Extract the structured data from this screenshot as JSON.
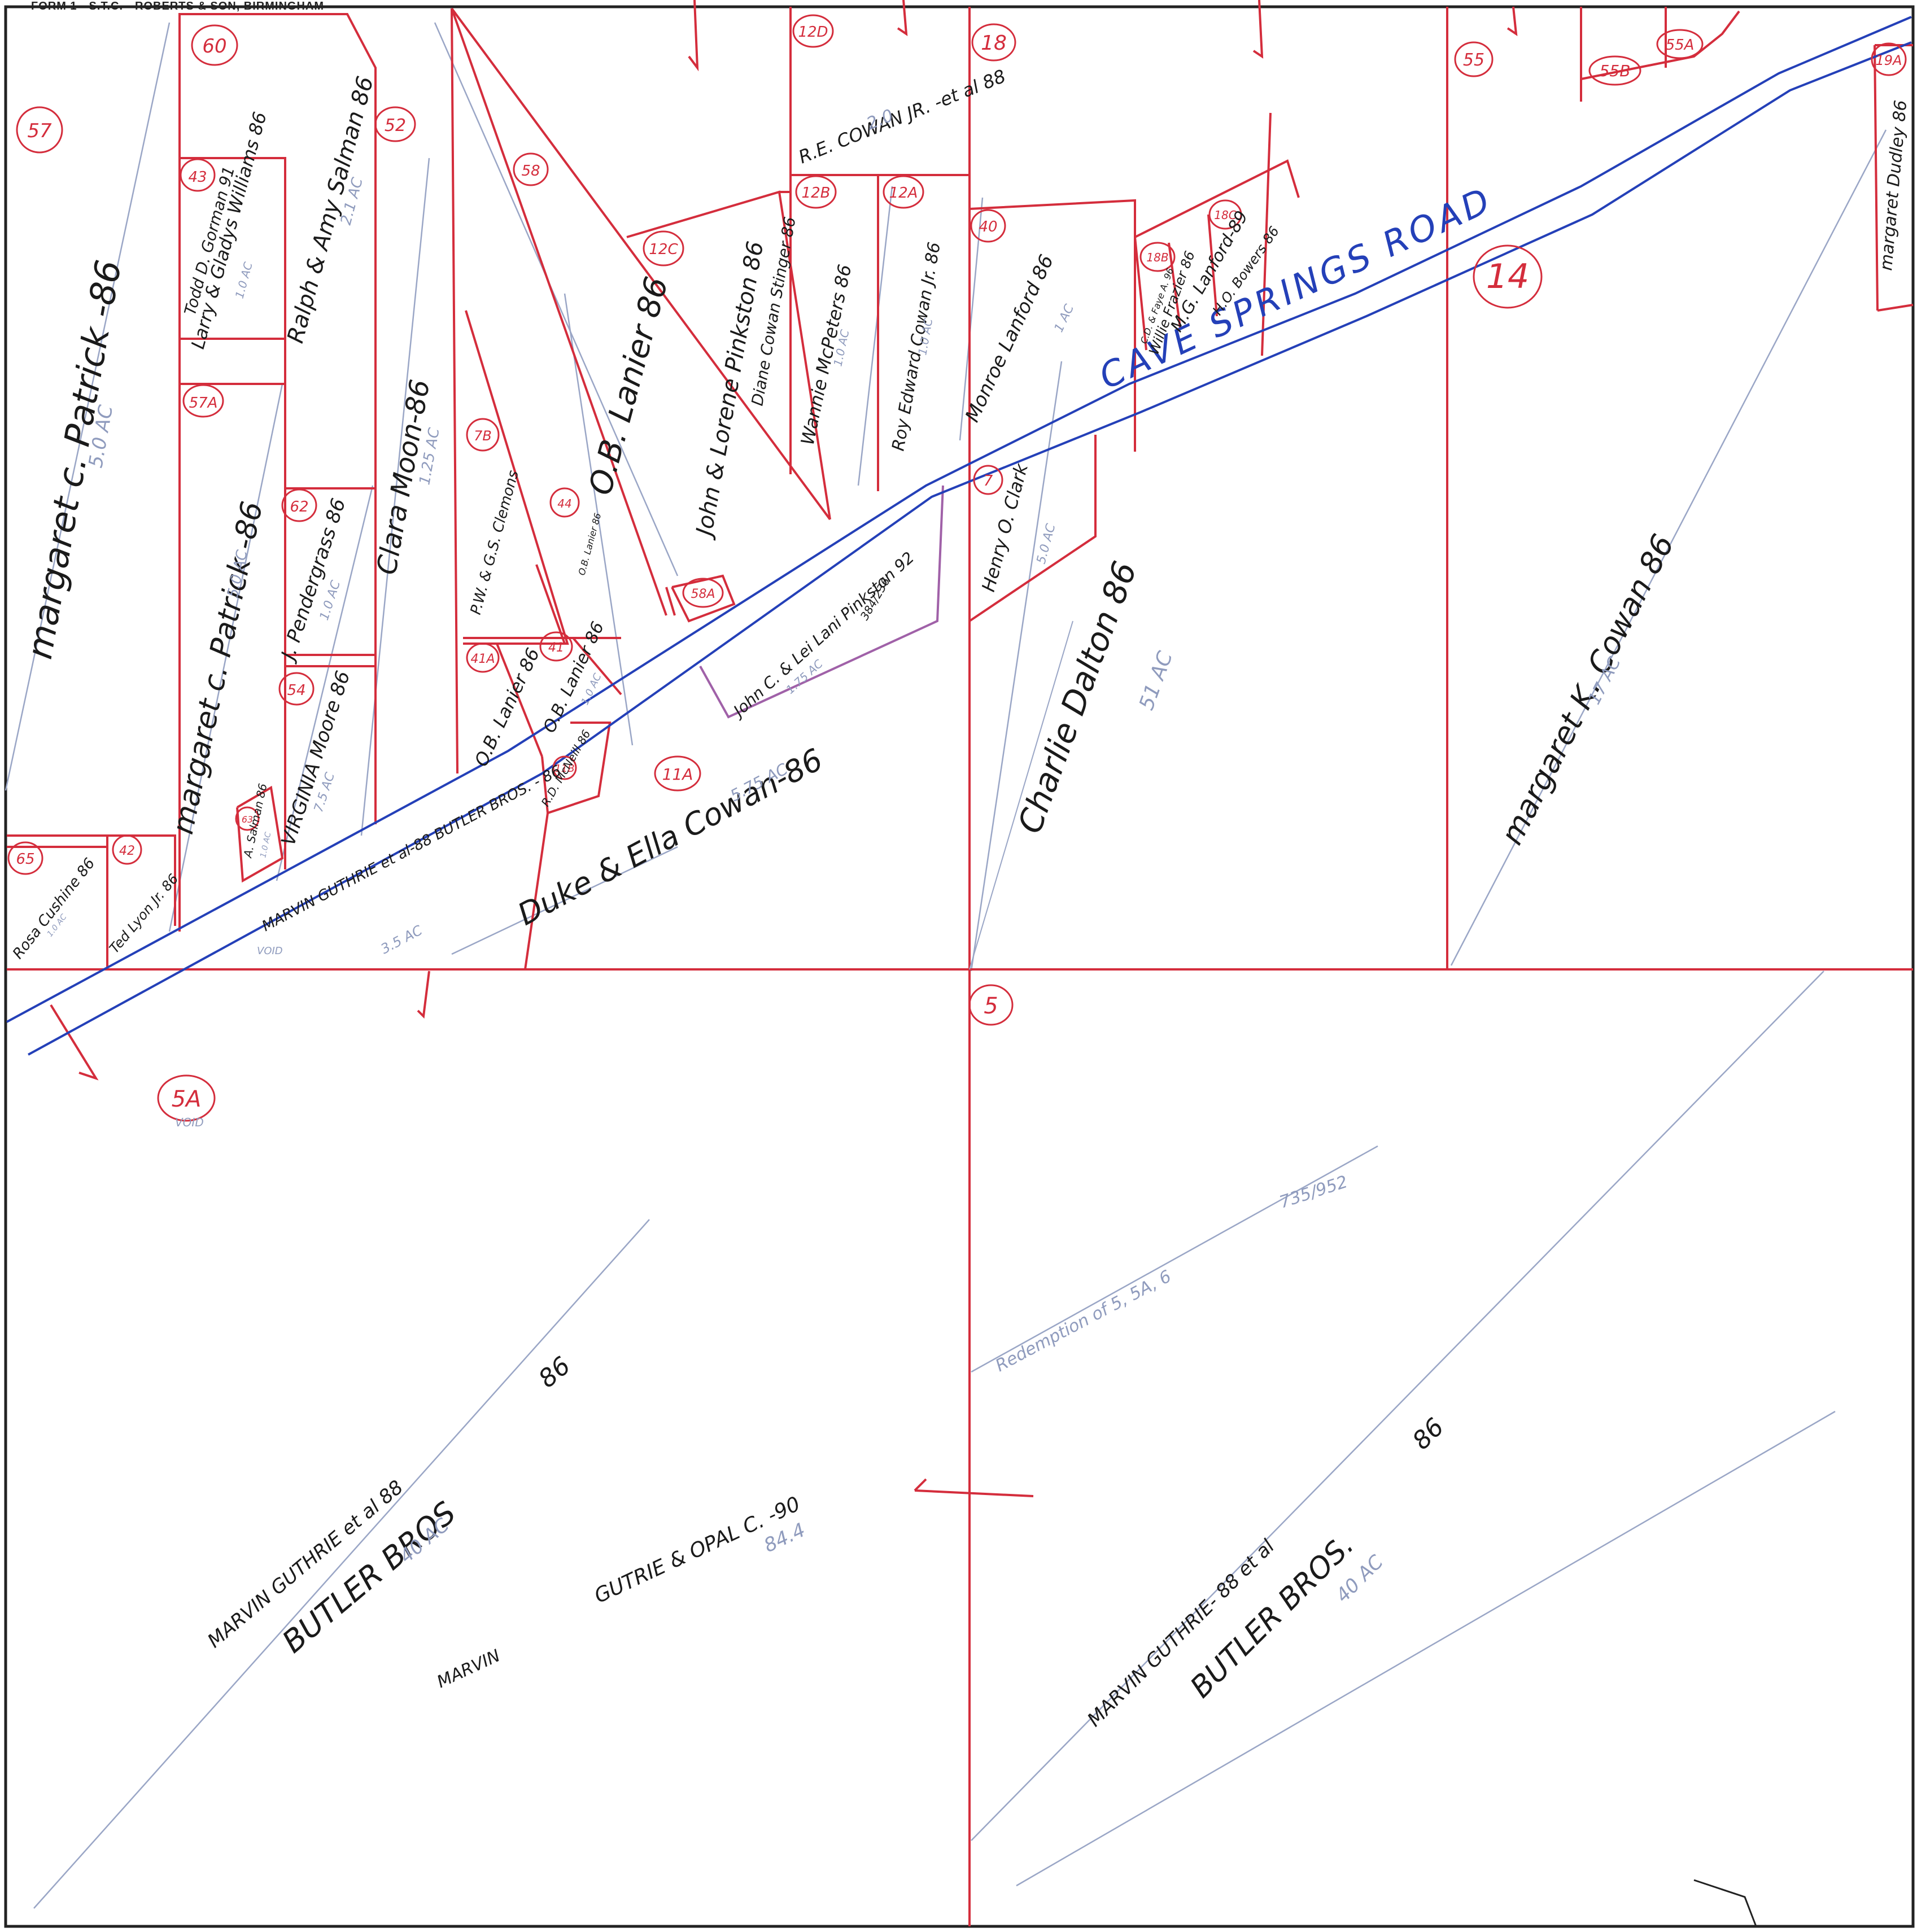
{
  "header": "FORM 1—S.T.C.—ROBERTS & SON, BIRMINGHAM",
  "colors": {
    "parcel_line": "#d42d3c",
    "road_line": "#2440b8",
    "pencil": "#9aa6c6",
    "frame": "#222222",
    "text": "#1a1a1a"
  },
  "road": {
    "name": "CAVE SPRINGS ROAD"
  },
  "parcels": [
    {
      "num": "57",
      "owner": "margaret c. Patrick -86",
      "acres": "5.0 AC"
    },
    {
      "num": "60",
      "owner": "",
      "acres": ""
    },
    {
      "num": "43",
      "owner": "Larry & Gladys Williams 86",
      "acres": "1.0 AC",
      "note": "Todd D. Gorman 91"
    },
    {
      "num": "57A",
      "owner": "margaret c. Patrick -86",
      "acres": "5.0 AC"
    },
    {
      "num": "52",
      "owner": "Clara Moon-86",
      "acres": "1.25 AC"
    },
    {
      "num": "",
      "owner": "Ralph & Amy Salman 86",
      "acres": "2.1 AC"
    },
    {
      "num": "62",
      "owner": "J. Pendergrass 86",
      "acres": "1.0 AC"
    },
    {
      "num": "54",
      "owner": "VIRGINIA Moore 86",
      "acres": "7.5 AC"
    },
    {
      "num": "63",
      "owner": "A. Salman 86",
      "acres": "1.0 AC"
    },
    {
      "num": "58",
      "owner": "O.B. Lanier 86",
      "acres": ""
    },
    {
      "num": "7B",
      "owner": "P.W. & G.S. Clemons",
      "acres": ""
    },
    {
      "num": "44",
      "owner": "O.B. Lanier 86",
      "acres": ""
    },
    {
      "num": "41A",
      "owner": "O.B. Lanier 86",
      "acres": ""
    },
    {
      "num": "41",
      "owner": "O.B. Lanier 86",
      "acres": "1.0 AC"
    },
    {
      "num": "12C",
      "owner": "John & Lorene Pinkston 86",
      "acres": ""
    },
    {
      "num": "58A",
      "owner": "",
      "acres": ""
    },
    {
      "num": "12D",
      "owner": "R.E. COWAN JR. -et al 88",
      "acres": "2.0"
    },
    {
      "num": "12B",
      "owner": "Diane Cowan Stinger 86",
      "acres": ""
    },
    {
      "num": "",
      "owner": "Wannie McPeters 86",
      "acres": "1.0 AC"
    },
    {
      "num": "12A",
      "owner": "Roy Edward Cowan Jr. 86",
      "acres": "1.0 AC"
    },
    {
      "num": "",
      "owner": "John C. & Lei Lani Pinkston 92",
      "acres": "1.75 AC",
      "note": "384/236"
    },
    {
      "num": "11B",
      "owner": "R.D. McNeill 86",
      "acres": ""
    },
    {
      "num": "11A",
      "owner": "Duke & Ella Cowan-86",
      "acres": "5.75 AC"
    },
    {
      "num": "",
      "owner": "MARVIN GUTHRIE et al-88 BUTLER BROS. - 86",
      "acres": "3.5 AC"
    },
    {
      "num": "65",
      "owner": "Rosa Cushine 86",
      "acres": "1.0 AC"
    },
    {
      "num": "42",
      "owner": "Ted Lyon Jr. 86",
      "acres": ""
    },
    {
      "num": "18",
      "owner": "",
      "acres": ""
    },
    {
      "num": "40",
      "owner": "Monroe Lanford 86",
      "acres": "1 AC"
    },
    {
      "num": "7",
      "owner": "Henry O. Clark",
      "acres": "5.0 AC"
    },
    {
      "num": "18B",
      "owner": "Willie Frazier 86",
      "acres": "",
      "note": "C.D. & Faye A. 96"
    },
    {
      "num": "18C",
      "owner": "M.G. Lanford-89",
      "acres": ""
    },
    {
      "num": "",
      "owner": "H.O. Bowers 86",
      "acres": ""
    },
    {
      "num": "",
      "owner": "Charlie Dalton 86",
      "acres": "51 AC"
    },
    {
      "num": "55",
      "owner": "",
      "acres": ""
    },
    {
      "num": "55B",
      "owner": "",
      "acres": ""
    },
    {
      "num": "55A",
      "owner": "",
      "acres": ""
    },
    {
      "num": "14",
      "owner": "margaret K. Cowan 86",
      "acres": "17 AC"
    },
    {
      "num": "19A",
      "owner": "margaret Dudley 86",
      "acres": ""
    },
    {
      "num": "5A",
      "owner": "",
      "acres": "VOID"
    },
    {
      "num": "5",
      "owner": "",
      "acres": ""
    }
  ],
  "lower_labels": {
    "w1": "MARVIN GUTHRIE et al 88",
    "w2": "BUTLER BROS",
    "w3": "86",
    "w4": "40 AC",
    "c1": "MARVIN",
    "c2": "GUTRIE & OPAL C. -90",
    "c3": "84.4",
    "e1": "MARVIN GUTHRIE- 88 et al",
    "e2": "BUTLER BROS.",
    "e3": "86",
    "e4": "40 AC",
    "redeem": "Redemption of 5, 5A, 6",
    "book": "735/952",
    "void_small": "VOID"
  }
}
